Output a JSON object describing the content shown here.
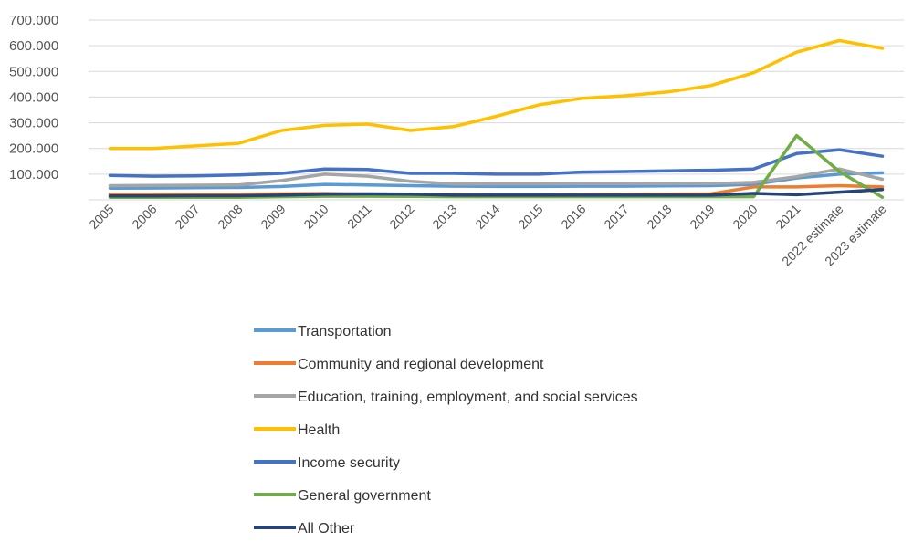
{
  "chart_data": {
    "type": "line",
    "title": "",
    "xlabel": "",
    "ylabel": "",
    "ylim": [
      0,
      700000
    ],
    "y_ticks": [
      "700.000",
      "600.000",
      "500.000",
      "400.000",
      "300.000",
      "200.000",
      "100.000"
    ],
    "y_tick_values": [
      700000,
      600000,
      500000,
      400000,
      300000,
      200000,
      100000
    ],
    "grid": true,
    "legend_position": "bottom",
    "categories": [
      "2005",
      "2006",
      "2007",
      "2008",
      "2009",
      "2010",
      "2011",
      "2012",
      "2013",
      "2014",
      "2015",
      "2016",
      "2017",
      "2018",
      "2019",
      "2020",
      "2021",
      "2022 estimate",
      "2023 estimate"
    ],
    "series": [
      {
        "name": "Transportation",
        "color": "#5B9BD5",
        "values": [
          45000,
          46000,
          47000,
          48000,
          52000,
          60000,
          58000,
          55000,
          53000,
          52000,
          52000,
          53000,
          53000,
          54000,
          55000,
          60000,
          85000,
          100000,
          105000
        ]
      },
      {
        "name": "Community and regional development",
        "color": "#ED7D31",
        "values": [
          22000,
          22000,
          22000,
          22000,
          23000,
          25000,
          22000,
          20000,
          20000,
          19000,
          19000,
          20000,
          21000,
          22000,
          23000,
          50000,
          50000,
          55000,
          50000
        ]
      },
      {
        "name": "Education, training, employment, and social services",
        "color": "#A5A5A5",
        "values": [
          55000,
          56000,
          57000,
          58000,
          75000,
          100000,
          92000,
          72000,
          62000,
          62000,
          62000,
          63000,
          63000,
          63000,
          63000,
          68000,
          90000,
          120000,
          80000
        ]
      },
      {
        "name": "Health",
        "color": "#FFC000",
        "values": [
          200000,
          200000,
          210000,
          220000,
          270000,
          290000,
          295000,
          270000,
          285000,
          325000,
          370000,
          395000,
          405000,
          420000,
          445000,
          495000,
          575000,
          620000,
          590000
        ]
      },
      {
        "name": "Income security",
        "color": "#4472C4",
        "values": [
          95000,
          92000,
          93000,
          97000,
          103000,
          120000,
          118000,
          103000,
          103000,
          100000,
          100000,
          108000,
          110000,
          113000,
          115000,
          120000,
          180000,
          195000,
          170000
        ]
      },
      {
        "name": "General government",
        "color": "#70AD47",
        "values": [
          10000,
          10000,
          10000,
          10000,
          12000,
          14000,
          14000,
          13000,
          12000,
          12000,
          12000,
          12000,
          12000,
          12000,
          12000,
          12000,
          250000,
          110000,
          10000
        ]
      },
      {
        "name": "All Other",
        "color": "#264478",
        "values": [
          15000,
          15000,
          16000,
          16000,
          18000,
          22000,
          23000,
          22000,
          18000,
          18000,
          18000,
          18000,
          18000,
          18000,
          18000,
          25000,
          20000,
          30000,
          40000
        ]
      }
    ]
  }
}
